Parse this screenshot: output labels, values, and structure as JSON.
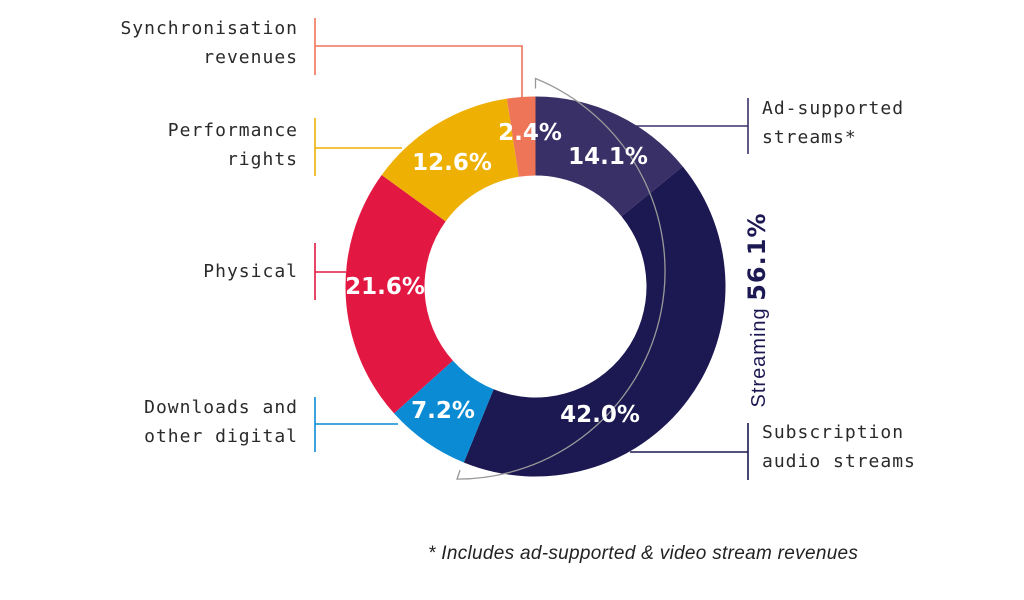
{
  "chart_data": {
    "type": "pie",
    "variant": "donut",
    "start": "top, clockwise",
    "slices": [
      {
        "label": "Ad-supported streams*",
        "value": 14.1,
        "display": "14.1%",
        "color": "#3a3068"
      },
      {
        "label": "Subscription audio streams",
        "value": 42.0,
        "display": "42.0%",
        "color": "#1c1852"
      },
      {
        "label": "Downloads and other digital",
        "value": 7.2,
        "display": "7.2%",
        "color": "#0a8bd3"
      },
      {
        "label": "Physical",
        "value": 21.6,
        "display": "21.6%",
        "color": "#e31842"
      },
      {
        "label": "Performance rights",
        "value": 12.6,
        "display": "12.6%",
        "color": "#edb003"
      },
      {
        "label": "Synchronisation revenues",
        "value": 2.4,
        "display": "2.4%",
        "color": "#ef7558"
      }
    ],
    "group": {
      "label": "Streaming",
      "value": "56.1%",
      "spans": [
        "Ad-supported streams*",
        "Subscription audio streams"
      ]
    },
    "labels": {
      "ad": [
        "Ad-supported",
        "streams*"
      ],
      "sub": [
        "Subscription",
        "audio streams"
      ],
      "dl": [
        "Downloads and",
        "other digital"
      ],
      "phys": [
        "Physical"
      ],
      "perf": [
        "Performance",
        "rights"
      ],
      "sync": [
        "Synchronisation",
        "revenues"
      ]
    },
    "footnote": "* Includes ad-supported & video stream revenues"
  }
}
